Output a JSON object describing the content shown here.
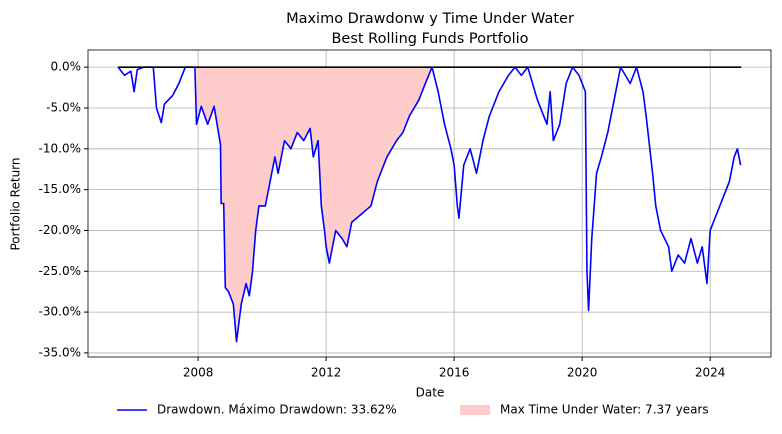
{
  "chart_data": {
    "type": "line",
    "title": "Maximo Drawdonw y Time Under Water",
    "subtitle": "Best Rolling Funds Portfolio",
    "x_label": "Date",
    "y_label": "Portfolio Return",
    "xlim": [
      2004.56,
      2025.9
    ],
    "xticks": [
      2008,
      2012,
      2016,
      2020,
      2024
    ],
    "ylim": [
      -35.5,
      2.1
    ],
    "yticks": [
      {
        "value": 0,
        "label": "0.0%"
      },
      {
        "value": -5,
        "label": "-5.0%"
      },
      {
        "value": -10,
        "label": "-10.0%"
      },
      {
        "value": -15,
        "label": "-15.0%"
      },
      {
        "value": -20,
        "label": "-20.0%"
      },
      {
        "value": -25,
        "label": "-25.0%"
      },
      {
        "value": -30,
        "label": "-30.0%"
      },
      {
        "value": -35,
        "label": "-35.0%"
      }
    ],
    "grid": true,
    "legend": "lower center",
    "series": [
      {
        "name": "Drawdown. Máximo Drawdown: 33.62%",
        "color": "#0000ff",
        "x": [
          2005.5,
          2005.7,
          2005.9,
          2006.0,
          2006.1,
          2006.3,
          2006.6,
          2006.7,
          2006.85,
          2006.95,
          2007.2,
          2007.4,
          2007.6,
          2007.9,
          2007.95,
          2008.1,
          2008.3,
          2008.5,
          2008.7,
          2008.72,
          2008.8,
          2008.85,
          2008.95,
          2009.1,
          2009.2,
          2009.35,
          2009.5,
          2009.6,
          2009.7,
          2009.8,
          2009.9,
          2010.1,
          2010.2,
          2010.4,
          2010.5,
          2010.7,
          2010.9,
          2011.1,
          2011.3,
          2011.5,
          2011.6,
          2011.75,
          2011.85,
          2011.95,
          2012.0,
          2012.1,
          2012.3,
          2012.5,
          2012.65,
          2012.8,
          2013.1,
          2013.4,
          2013.6,
          2013.9,
          2014.2,
          2014.4,
          2014.6,
          2014.9,
          2015.1,
          2015.31,
          2015.5,
          2015.7,
          2015.9,
          2016.0,
          2016.1,
          2016.15,
          2016.3,
          2016.5,
          2016.7,
          2016.9,
          2017.1,
          2017.4,
          2017.7,
          2017.9,
          2018.1,
          2018.3,
          2018.6,
          2018.9,
          2019.0,
          2019.1,
          2019.3,
          2019.5,
          2019.7,
          2019.9,
          2020.0,
          2020.1,
          2020.15,
          2020.2,
          2020.3,
          2020.45,
          2020.6,
          2020.8,
          2021.0,
          2021.2,
          2021.5,
          2021.7,
          2021.9,
          2022.0,
          2022.2,
          2022.3,
          2022.45,
          2022.7,
          2022.8,
          2023.0,
          2023.2,
          2023.4,
          2023.6,
          2023.75,
          2023.85,
          2023.9,
          2024.0,
          2024.2,
          2024.4,
          2024.6,
          2024.75,
          2024.85,
          2024.95
        ],
        "values": [
          0,
          -1,
          -0.5,
          -3,
          -0.3,
          0,
          0,
          -5,
          -6.8,
          -4.5,
          -3.5,
          -2,
          0,
          0,
          -7,
          -4.8,
          -7,
          -4.8,
          -9.5,
          -16.7,
          -16.7,
          -27,
          -27.5,
          -29,
          -33.62,
          -29,
          -26.5,
          -28,
          -25,
          -20,
          -17,
          -17,
          -15,
          -11,
          -13,
          -9,
          -10,
          -8,
          -9,
          -7.5,
          -11,
          -9,
          -17,
          -20,
          -22,
          -24,
          -20,
          -21,
          -22,
          -19,
          -18,
          -17,
          -14,
          -11,
          -9,
          -8,
          -6,
          -4,
          -2,
          0,
          -3,
          -7,
          -10,
          -12,
          -17,
          -18.5,
          -12,
          -10,
          -13,
          -9,
          -6,
          -3,
          -1,
          0,
          -1,
          0,
          -4,
          -7,
          -3,
          -9,
          -7,
          -2,
          0,
          -1,
          -2,
          -3,
          -25,
          -29.8,
          -21,
          -13,
          -11,
          -8,
          -4,
          0,
          -2,
          0,
          -3,
          -6,
          -13,
          -17,
          -20,
          -22,
          -25,
          -23,
          -24,
          -21,
          -24,
          -22,
          -25,
          -26.5,
          -20,
          -18,
          -16,
          -14,
          -11,
          -10,
          -12
        ]
      }
    ],
    "fill": {
      "name": "Max Time Under Water: 7.37 years",
      "color": "#ffcccc",
      "x_range": [
        2007.94,
        2015.31
      ]
    },
    "zero_line": {
      "color": "#000000",
      "y": 0,
      "x_range": [
        2005.5,
        2024.97
      ]
    }
  }
}
